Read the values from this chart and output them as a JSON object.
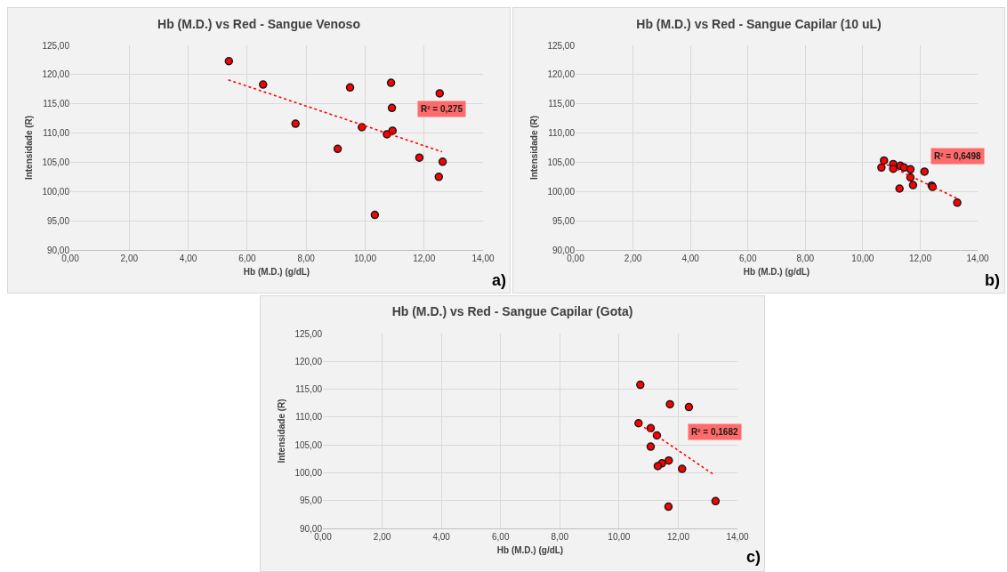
{
  "chart_data": [
    {
      "type": "scatter",
      "title": "Hb (M.D.) vs Red - Sangue Venoso",
      "xlabel": "Hb (M.D.) (g/dL)",
      "ylabel": "Intensidade (R)",
      "xlim": [
        0,
        14
      ],
      "ylim": [
        90,
        125
      ],
      "xticks": [
        {
          "value": 0,
          "label": "0,00"
        },
        {
          "value": 2,
          "label": "2,00"
        },
        {
          "value": 4,
          "label": "4,00"
        },
        {
          "value": 6,
          "label": "6,00"
        },
        {
          "value": 8,
          "label": "8,00"
        },
        {
          "value": 10,
          "label": "10,00"
        },
        {
          "value": 12,
          "label": "12,00"
        },
        {
          "value": 14,
          "label": "14,00"
        }
      ],
      "yticks": [
        {
          "value": 90,
          "label": "90,00"
        },
        {
          "value": 95,
          "label": "95,00"
        },
        {
          "value": 100,
          "label": "100,00"
        },
        {
          "value": 105,
          "label": "105,00"
        },
        {
          "value": 110,
          "label": "110,00"
        },
        {
          "value": 115,
          "label": "115,00"
        },
        {
          "value": 120,
          "label": "120,00"
        },
        {
          "value": 125,
          "label": "125,00"
        }
      ],
      "grid": true,
      "series": [
        {
          "color": "#ff0000",
          "marker": "circle",
          "x": [
            5.38,
            6.54,
            7.64,
            9.49,
            9.07,
            9.89,
            10.33,
            10.74,
            10.88,
            10.91,
            10.93,
            11.84,
            12.53,
            12.5,
            12.63
          ],
          "values": [
            122.3,
            118.3,
            111.6,
            117.8,
            107.3,
            111.0,
            96.0,
            109.8,
            118.6,
            114.3,
            110.4,
            105.8,
            116.8,
            102.5,
            105.1
          ]
        },
        {
          "type": "line",
          "color": "#ff0000",
          "marker": "none",
          "line_style": "dotted",
          "x": [
            5.36,
            12.61
          ],
          "values": [
            119.1,
            106.8
          ]
        }
      ],
      "annotations": [
        "R² = 0,275",
        "a)"
      ]
    },
    {
      "type": "scatter",
      "title": "Hb (M.D.) vs Red - Sangue Capilar (10 uL)",
      "xlabel": "Hb (M.D.) (g/dL)",
      "ylabel": "Intensidade (R)",
      "xlim": [
        0,
        14
      ],
      "ylim": [
        90,
        125
      ],
      "xticks": [
        {
          "value": 0,
          "label": "0,00"
        },
        {
          "value": 2,
          "label": "2,00"
        },
        {
          "value": 4,
          "label": "4,00"
        },
        {
          "value": 6,
          "label": "6,00"
        },
        {
          "value": 8,
          "label": "8,00"
        },
        {
          "value": 10,
          "label": "10,00"
        },
        {
          "value": 12,
          "label": "12,00"
        },
        {
          "value": 14,
          "label": "14,00"
        }
      ],
      "yticks": [
        {
          "value": 90,
          "label": "90,00"
        },
        {
          "value": 95,
          "label": "95,00"
        },
        {
          "value": 100,
          "label": "100,00"
        },
        {
          "value": 105,
          "label": "105,00"
        },
        {
          "value": 110,
          "label": "110,00"
        },
        {
          "value": 115,
          "label": "115,00"
        },
        {
          "value": 120,
          "label": "120,00"
        },
        {
          "value": 125,
          "label": "125,00"
        }
      ],
      "grid": true,
      "series": [
        {
          "color": "#ff0000",
          "marker": "circle",
          "x": [
            10.74,
            10.65,
            11.06,
            11.06,
            11.31,
            11.44,
            11.66,
            11.66,
            11.75,
            11.28,
            12.15,
            12.4,
            12.43,
            13.29
          ],
          "values": [
            105.3,
            104.1,
            104.7,
            103.9,
            104.4,
            104.1,
            103.8,
            102.4,
            101.1,
            100.5,
            103.4,
            101.0,
            100.8,
            98.1
          ]
        },
        {
          "type": "line",
          "color": "#ff0000",
          "marker": "none",
          "line_style": "dotted",
          "x": [
            10.67,
            13.29
          ],
          "values": [
            105.0,
            98.8
          ]
        }
      ],
      "annotations": [
        "R² = 0,6498",
        "b)"
      ]
    },
    {
      "type": "scatter",
      "title": "Hb (M.D.) vs Red - Sangue Capilar (Gota)",
      "xlabel": "Hb (M.D.) (g/dL)",
      "ylabel": "Intensidade (R)",
      "xlim": [
        0,
        14
      ],
      "ylim": [
        90,
        125
      ],
      "xticks": [
        {
          "value": 0,
          "label": "0,00"
        },
        {
          "value": 2,
          "label": "2,00"
        },
        {
          "value": 4,
          "label": "4,00"
        },
        {
          "value": 6,
          "label": "6,00"
        },
        {
          "value": 8,
          "label": "8,00"
        },
        {
          "value": 10,
          "label": "10,00"
        },
        {
          "value": 12,
          "label": "12,00"
        },
        {
          "value": 14,
          "label": "14,00"
        }
      ],
      "yticks": [
        {
          "value": 90,
          "label": "90,00"
        },
        {
          "value": 95,
          "label": "95,00"
        },
        {
          "value": 100,
          "label": "100,00"
        },
        {
          "value": 105,
          "label": "105,00"
        },
        {
          "value": 110,
          "label": "110,00"
        },
        {
          "value": 115,
          "label": "115,00"
        },
        {
          "value": 120,
          "label": "120,00"
        },
        {
          "value": 125,
          "label": "125,00"
        }
      ],
      "grid": true,
      "series": [
        {
          "color": "#ff0000",
          "marker": "circle",
          "x": [
            10.72,
            11.72,
            12.36,
            10.66,
            11.07,
            11.28,
            11.07,
            11.68,
            11.45,
            11.31,
            12.13,
            13.26,
            11.67
          ],
          "values": [
            115.8,
            112.3,
            111.8,
            108.9,
            108.0,
            106.7,
            104.7,
            102.2,
            101.7,
            101.2,
            100.7,
            94.9,
            93.9
          ]
        },
        {
          "type": "line",
          "color": "#ff0000",
          "marker": "none",
          "line_style": "dotted",
          "x": [
            10.7,
            13.22
          ],
          "values": [
            108.7,
            99.6
          ]
        }
      ],
      "annotations": [
        "R² = 0,1682",
        "c)"
      ]
    }
  ]
}
